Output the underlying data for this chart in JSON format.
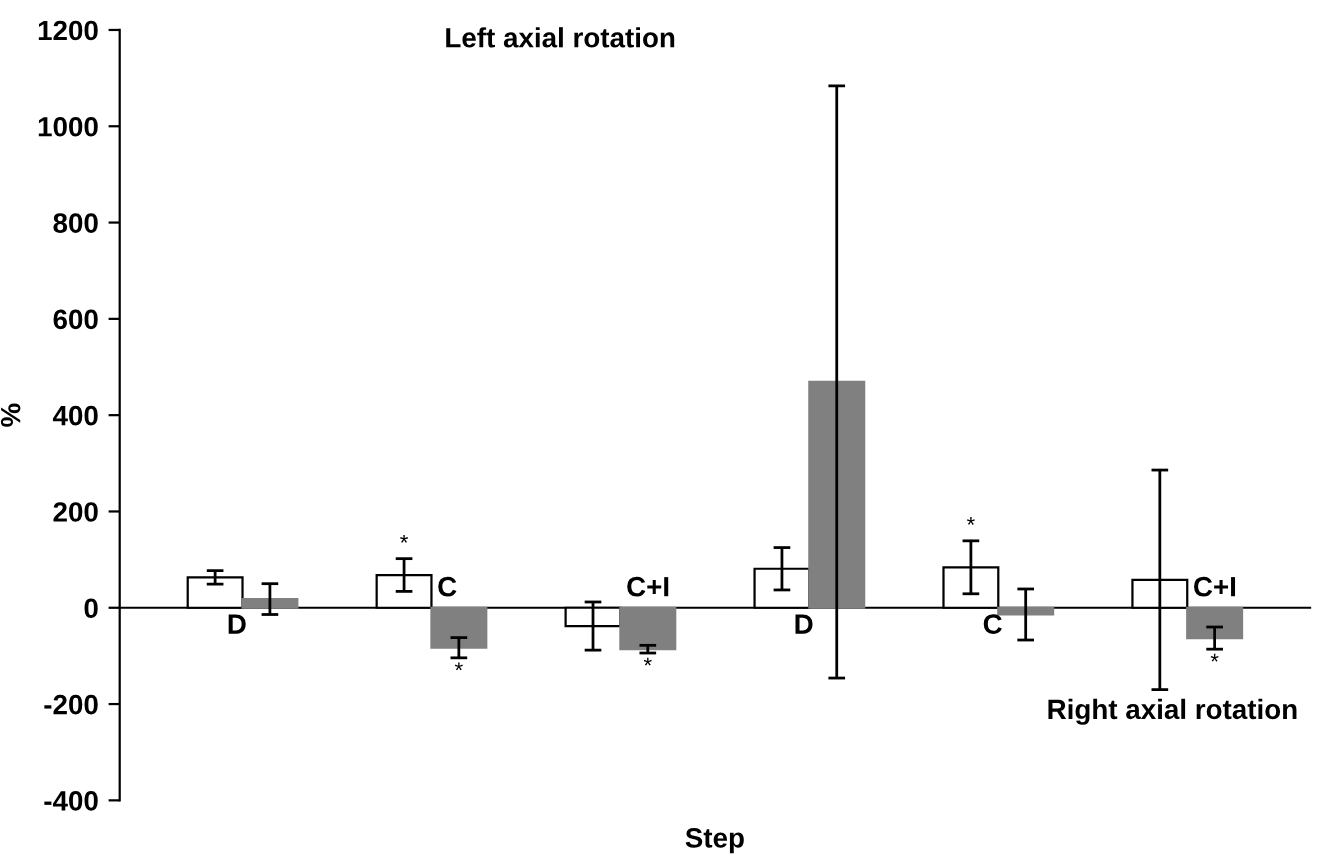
{
  "chart_data": {
    "type": "bar",
    "xlabel": "Step",
    "ylabel": "%",
    "categories": [
      "D",
      "C",
      "C+I",
      "D",
      "C",
      "C+I"
    ],
    "series": [
      {
        "color": "#ffffff",
        "values": [
          63,
          68,
          -38,
          81,
          84,
          58
        ],
        "errors": [
          14,
          34,
          50,
          44,
          55,
          228
        ],
        "value_labels": [
          null,
          "*",
          null,
          null,
          "*",
          null
        ]
      },
      {
        "color": "#808080",
        "values": [
          18,
          -83,
          -86,
          469,
          -14,
          -63
        ],
        "errors": [
          32,
          21,
          8,
          615,
          53,
          23
        ],
        "value_labels": [
          null,
          "*",
          "*",
          null,
          null,
          "*"
        ]
      }
    ],
    "ylim": [
      -400,
      1200
    ],
    "yticks": [
      -400,
      -200,
      0,
      200,
      400,
      600,
      800,
      1000,
      1200
    ],
    "annotations": [
      "Left axial rotation",
      "Right axial rotation"
    ]
  }
}
